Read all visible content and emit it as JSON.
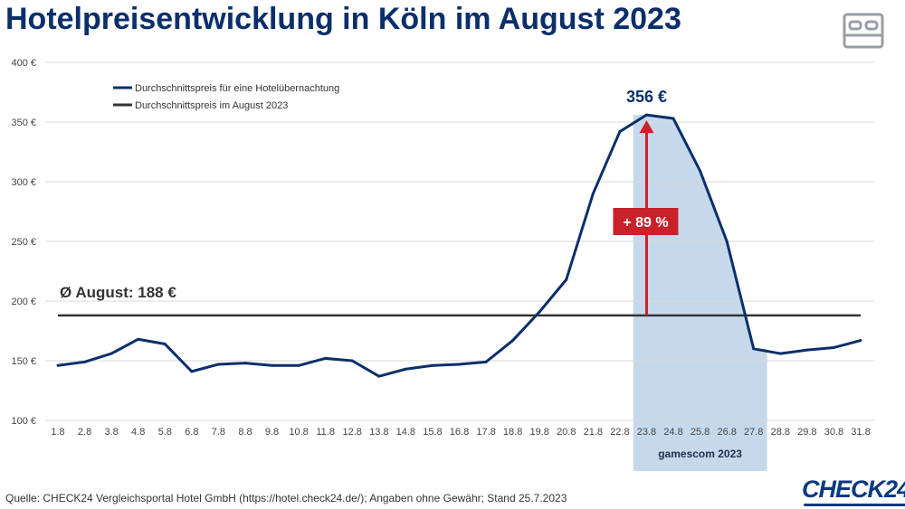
{
  "title": "Hotelpreisentwicklung in Köln im August 2023",
  "source": "Quelle: CHECK24 Vergleichsportal Hotel GmbH (https://hotel.check24.de/); Angaben ohne Gewähr; Stand 25.7.2023",
  "logo_text": "CHECK24",
  "icons": {
    "header": "bed-icon"
  },
  "chart_data": {
    "type": "line",
    "title": "Hotelpreisentwicklung in Köln im August 2023",
    "xlabel": "",
    "ylabel": "",
    "categories": [
      "1.8",
      "2.8",
      "3.8",
      "4.8",
      "5.8",
      "6.8",
      "7.8",
      "8.8",
      "9.8",
      "10.8",
      "11.8",
      "12.8",
      "13.8",
      "14.8",
      "15.8",
      "16.8",
      "17.8",
      "18.8",
      "19.8",
      "20.8",
      "21.8",
      "22.8",
      "23.8",
      "24.8",
      "25.8",
      "26.8",
      "27.8",
      "28.8",
      "29.8",
      "30.8",
      "31.8"
    ],
    "ylim": [
      100,
      400
    ],
    "yticks": [
      100,
      150,
      200,
      250,
      300,
      350,
      400
    ],
    "ytick_labels": [
      "100 €",
      "150 €",
      "200 €",
      "250 €",
      "300 €",
      "350 €",
      "400 €"
    ],
    "grid": true,
    "legend_position": "top-left",
    "series": [
      {
        "name": "Durchschnittspreis für eine Hotelübernachtung",
        "color": "#0b2f6b",
        "values": [
          146,
          149,
          156,
          168,
          164,
          141,
          147,
          148,
          146,
          146,
          152,
          150,
          137,
          143,
          146,
          147,
          149,
          167,
          191,
          218,
          290,
          342,
          356,
          353,
          309,
          250,
          160,
          156,
          159,
          161,
          167
        ]
      },
      {
        "name": "Durchschnittspreis im August 2023",
        "color": "#333333",
        "values": [
          188,
          188,
          188,
          188,
          188,
          188,
          188,
          188,
          188,
          188,
          188,
          188,
          188,
          188,
          188,
          188,
          188,
          188,
          188,
          188,
          188,
          188,
          188,
          188,
          188,
          188,
          188,
          188,
          188,
          188,
          188
        ]
      }
    ],
    "average_value": 188,
    "peak_value": 356,
    "highlight": {
      "label": "gamescom 2023",
      "start": "23.8",
      "end": "27.8",
      "color": "#c5d9eb"
    },
    "annotations": {
      "average_label": "Ø August: 188 €",
      "peak_label": "356 €",
      "change_label": "+ 89 %",
      "change_color": "#c8222b"
    }
  }
}
